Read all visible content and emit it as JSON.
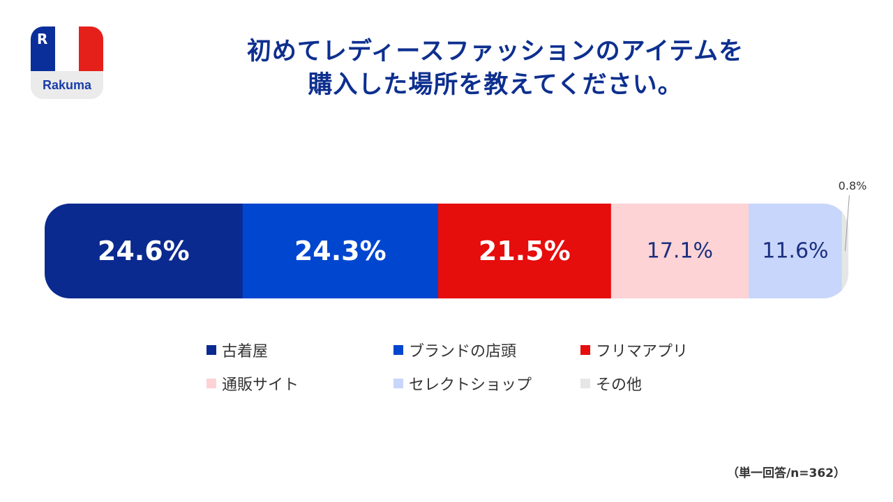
{
  "logo": {
    "mark": "R",
    "wordmark": "Rakuma",
    "colors": {
      "blue": "#0b2f9a",
      "white": "#ffffff",
      "red": "#e5201a"
    }
  },
  "title_lines": [
    "初めてレディースファッションのアイテムを",
    "購入した場所を教えてください。"
  ],
  "note": "（単一回答/n=362）",
  "chart_data": {
    "type": "bar",
    "orientation": "horizontal-stacked-100",
    "categories": [
      "古着屋",
      "ブランドの店頭",
      "フリマアプリ",
      "通販サイト",
      "セレクトショップ",
      "その他"
    ],
    "values": [
      24.6,
      24.3,
      21.5,
      17.1,
      11.6,
      0.8
    ],
    "labels": [
      "24.6%",
      "24.3%",
      "21.5%",
      "17.1%",
      "11.6%",
      "0.8%"
    ],
    "colors": [
      "#0b2a8f",
      "#0046cf",
      "#e60d0d",
      "#fdd3d5",
      "#c9d6fb",
      "#e6e6e6"
    ],
    "label_colors": [
      "#ffffff",
      "#ffffff",
      "#ffffff",
      "#1a2f7f",
      "#1a2f7f",
      "#333333"
    ],
    "label_bold": [
      true,
      true,
      true,
      false,
      false,
      false
    ],
    "legend_position": "bottom",
    "xlim": [
      0,
      100
    ]
  }
}
